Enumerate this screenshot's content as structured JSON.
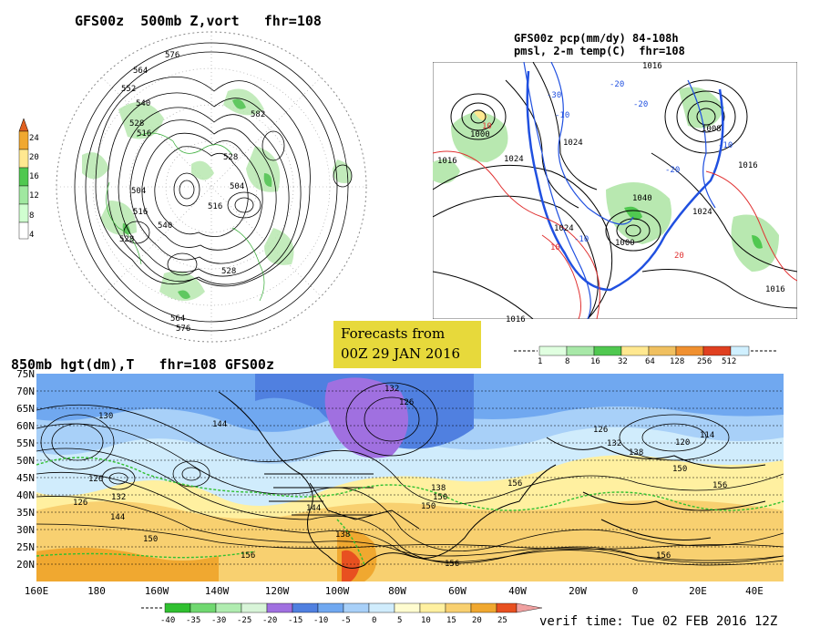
{
  "panel_500mb": {
    "title": "GFS00z  500mb Z,vort   fhr=108",
    "colorbar_labels": [
      "24",
      "20",
      "16",
      "12",
      "8",
      "4"
    ],
    "colorbar_colors": [
      "#d0ffd0",
      "#a0e8a0",
      "#50c850",
      "#ffe890",
      "#f0a830",
      "#e06020"
    ],
    "contour_labels": [
      "576",
      "564",
      "552",
      "540",
      "528",
      "516",
      "504",
      "582",
      "528",
      "540",
      "516",
      "504",
      "528",
      "528",
      "516",
      "564",
      "576"
    ]
  },
  "panel_pcp": {
    "title_line1": "GFS00z pcp(mm/dy) 84-108h",
    "title_line2": "pmsl, 2-m temp(C)  fhr=108",
    "isobar_labels": [
      "1000",
      "1016",
      "1024",
      "1024",
      "1016",
      "1024",
      "1040",
      "1000",
      "1016",
      "1024",
      "1016",
      "1008",
      "1016"
    ],
    "temp_labels": [
      "-30",
      "-20",
      "-10",
      "10",
      "-20",
      "-10",
      "10",
      "20",
      "-20",
      "-10"
    ],
    "colorbar_labels": [
      "1",
      "8",
      "16",
      "32",
      "64",
      "128",
      "256",
      "512"
    ],
    "colorbar_colors": [
      "#e0ffe0",
      "#a8e8a8",
      "#50c850",
      "#ffe890",
      "#f0c060",
      "#f09030",
      "#e04020",
      "#d0f0ff"
    ]
  },
  "stamp": {
    "line1": "Forecasts from",
    "line2": "00Z 29 JAN 2016"
  },
  "panel_850mb": {
    "title": "850mb hgt(dm),T   fhr=108 GFS00z",
    "lat_labels": [
      "75N",
      "70N",
      "65N",
      "60N",
      "55N",
      "50N",
      "45N",
      "40N",
      "35N",
      "30N",
      "25N",
      "20N"
    ],
    "lon_labels": [
      "160E",
      "180",
      "160W",
      "140W",
      "120W",
      "100W",
      "80W",
      "60W",
      "40W",
      "20W",
      "0",
      "20E",
      "40E"
    ],
    "height_labels": [
      "132",
      "126",
      "130",
      "144",
      "126",
      "132",
      "126",
      "144",
      "138",
      "150",
      "156",
      "156",
      "126",
      "132",
      "138",
      "120",
      "114",
      "150",
      "156",
      "156",
      "150",
      "144",
      "138",
      "150",
      "156"
    ],
    "colorbar_labels": [
      "-40",
      "-35",
      "-30",
      "-25",
      "-20",
      "-15",
      "-10",
      "-5",
      "0",
      "5",
      "10",
      "15",
      "20",
      "25"
    ],
    "colorbar_colors": [
      "#30c030",
      "#70d870",
      "#b0ecb0",
      "#d8f4d8",
      "#a070e0",
      "#5080e0",
      "#70a8f0",
      "#a8d0f8",
      "#d0ecfc",
      "#fffcd0",
      "#fff0a0",
      "#f8d070",
      "#f0a830",
      "#e85020",
      "#f0a0a0"
    ]
  },
  "verif": {
    "text": "verif time: Tue 02 FEB 2016 12Z"
  }
}
